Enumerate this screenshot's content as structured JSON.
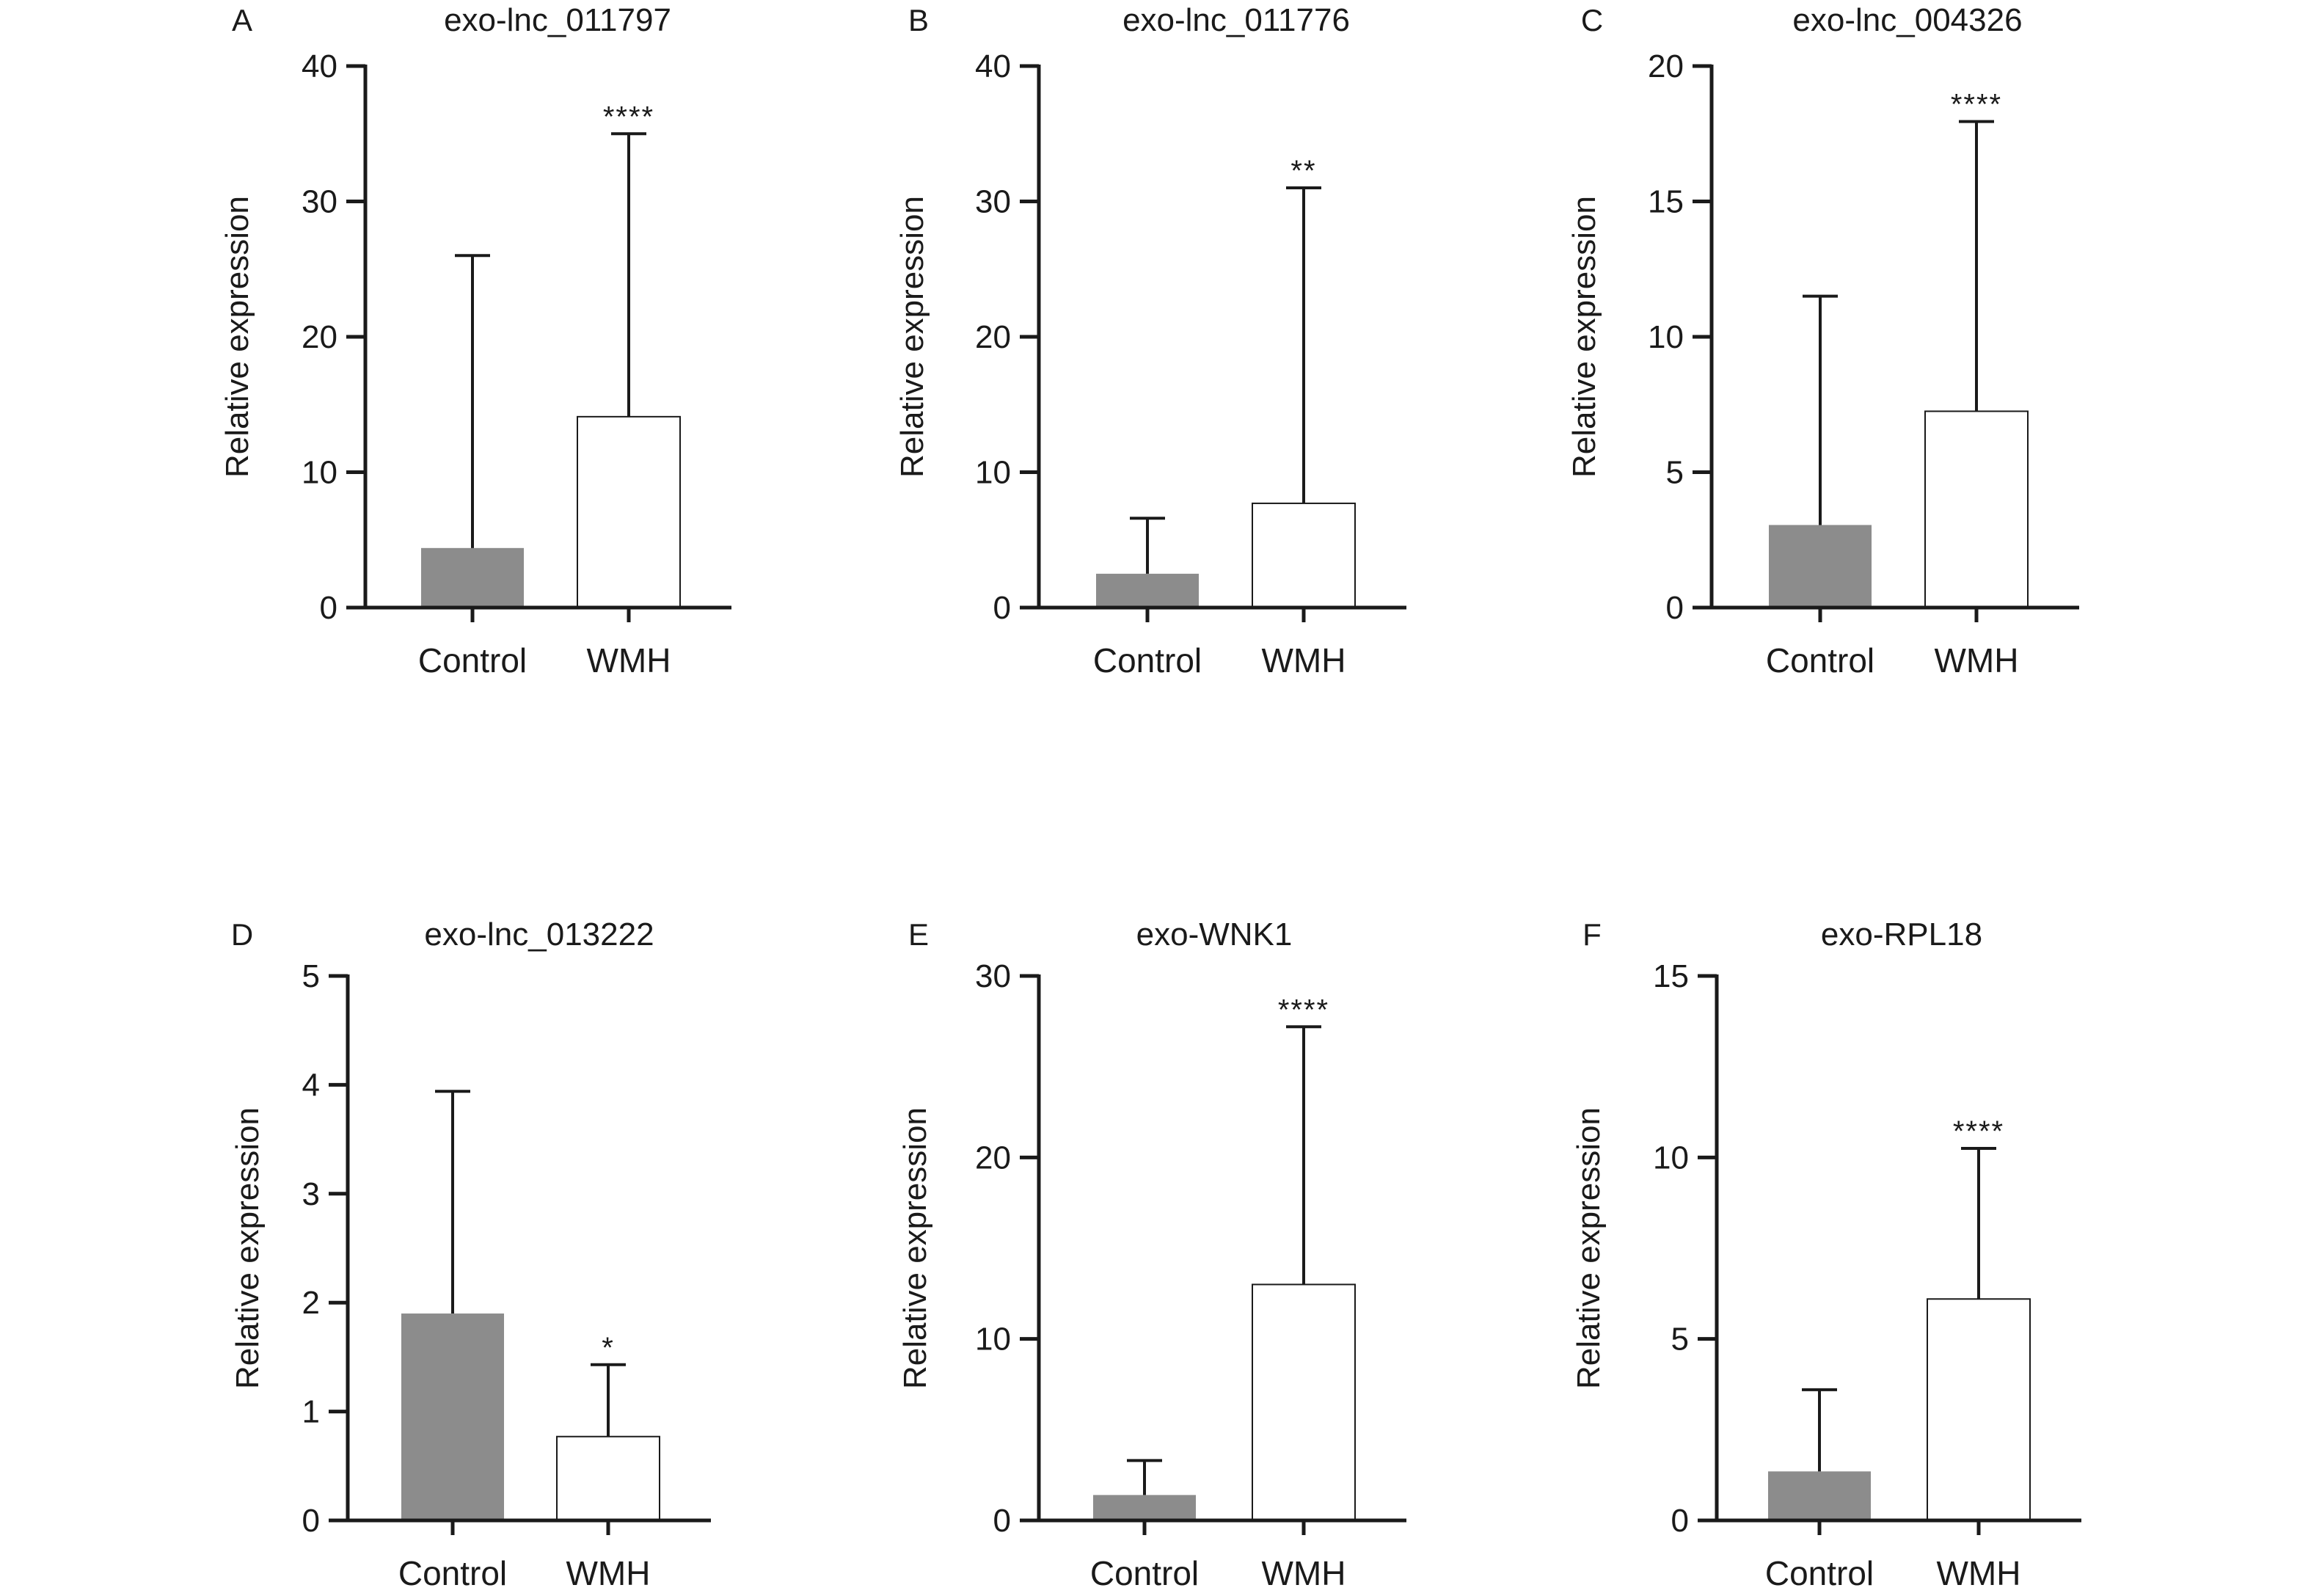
{
  "chart_data": [
    {
      "panel": "A",
      "title": "exo-lnc_011797",
      "type": "bar",
      "ylabel": "Relative expression",
      "ylim": [
        0,
        40
      ],
      "yticks": [
        0,
        10,
        20,
        30,
        40
      ],
      "categories": [
        "Control",
        "WMH"
      ],
      "values": [
        4.4,
        14.1
      ],
      "error_upper": [
        26,
        35
      ],
      "significance": [
        "",
        "****"
      ],
      "bar_fills": [
        "#8c8c8c",
        "#ffffff"
      ]
    },
    {
      "panel": "B",
      "title": "exo-lnc_011776",
      "type": "bar",
      "ylabel": "Relative expression",
      "ylim": [
        0,
        40
      ],
      "yticks": [
        0,
        10,
        20,
        30,
        40
      ],
      "categories": [
        "Control",
        "WMH"
      ],
      "values": [
        2.5,
        7.7
      ],
      "error_upper": [
        6.6,
        31
      ],
      "significance": [
        "",
        "**"
      ],
      "bar_fills": [
        "#8c8c8c",
        "#ffffff"
      ]
    },
    {
      "panel": "C",
      "title": "exo-lnc_004326",
      "type": "bar",
      "ylabel": "Relative expression",
      "ylim": [
        0,
        20
      ],
      "yticks": [
        0,
        5,
        10,
        15,
        20
      ],
      "categories": [
        "Control",
        "WMH"
      ],
      "values": [
        3.05,
        7.25
      ],
      "error_upper": [
        11.5,
        17.95
      ],
      "significance": [
        "",
        "****"
      ],
      "bar_fills": [
        "#8c8c8c",
        "#ffffff"
      ]
    },
    {
      "panel": "D",
      "title": "exo-lnc_013222",
      "type": "bar",
      "ylabel": "Relative expression",
      "ylim": [
        0,
        5
      ],
      "yticks": [
        0,
        1,
        2,
        3,
        4,
        5
      ],
      "categories": [
        "Control",
        "WMH"
      ],
      "values": [
        1.9,
        0.77
      ],
      "error_upper": [
        3.94,
        1.43
      ],
      "significance": [
        "",
        "*"
      ],
      "bar_fills": [
        "#8c8c8c",
        "#ffffff"
      ]
    },
    {
      "panel": "E",
      "title": "exo-WNK1",
      "type": "bar",
      "ylabel": "Relative expression",
      "ylim": [
        0,
        30
      ],
      "yticks": [
        0,
        10,
        20,
        30
      ],
      "categories": [
        "Control",
        "WMH"
      ],
      "values": [
        1.4,
        13
      ],
      "error_upper": [
        3.3,
        27.2
      ],
      "significance": [
        "",
        "****"
      ],
      "bar_fills": [
        "#8c8c8c",
        "#ffffff"
      ]
    },
    {
      "panel": "F",
      "title": "exo-RPL18",
      "type": "bar",
      "ylabel": "Relative expression",
      "ylim": [
        0,
        15
      ],
      "yticks": [
        0,
        5,
        10,
        15
      ],
      "categories": [
        "Control",
        "WMH"
      ],
      "values": [
        1.35,
        6.1
      ],
      "error_upper": [
        3.6,
        10.25
      ],
      "significance": [
        "",
        "****"
      ],
      "bar_fills": [
        "#8c8c8c",
        "#ffffff"
      ]
    }
  ]
}
